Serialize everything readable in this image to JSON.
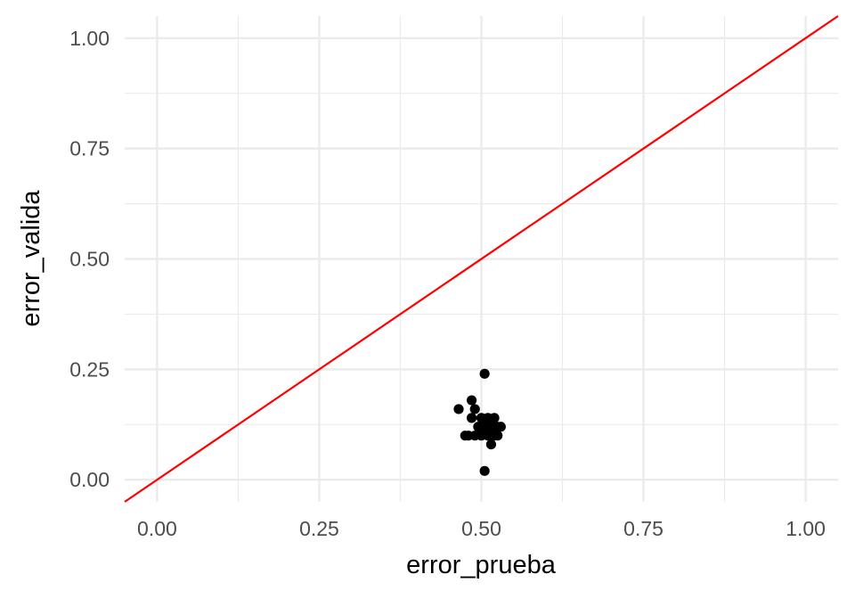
{
  "chart_data": {
    "type": "scatter",
    "title": "",
    "xlabel": "error_prueba",
    "ylabel": "error_valida",
    "xlim": [
      -0.05,
      1.05
    ],
    "ylim": [
      -0.05,
      1.05
    ],
    "x_ticks": [
      0.0,
      0.25,
      0.5,
      0.75,
      1.0
    ],
    "y_ticks": [
      0.0,
      0.25,
      0.5,
      0.75,
      1.0
    ],
    "x_tick_labels": [
      "0.00",
      "0.25",
      "0.50",
      "0.75",
      "1.00"
    ],
    "y_tick_labels": [
      "0.00",
      "0.25",
      "0.50",
      "0.75",
      "1.00"
    ],
    "grid": true,
    "reference_line": {
      "intercept": 0,
      "slope": 1,
      "color": "#ff0000"
    },
    "point_color": "#000000",
    "points": [
      {
        "x": 0.505,
        "y": 0.24
      },
      {
        "x": 0.485,
        "y": 0.18
      },
      {
        "x": 0.465,
        "y": 0.16
      },
      {
        "x": 0.49,
        "y": 0.16
      },
      {
        "x": 0.485,
        "y": 0.14
      },
      {
        "x": 0.5,
        "y": 0.14
      },
      {
        "x": 0.51,
        "y": 0.14
      },
      {
        "x": 0.52,
        "y": 0.14
      },
      {
        "x": 0.495,
        "y": 0.12
      },
      {
        "x": 0.505,
        "y": 0.12
      },
      {
        "x": 0.515,
        "y": 0.12
      },
      {
        "x": 0.525,
        "y": 0.12
      },
      {
        "x": 0.53,
        "y": 0.12
      },
      {
        "x": 0.5,
        "y": 0.11
      },
      {
        "x": 0.51,
        "y": 0.11
      },
      {
        "x": 0.52,
        "y": 0.11
      },
      {
        "x": 0.475,
        "y": 0.1
      },
      {
        "x": 0.48,
        "y": 0.1
      },
      {
        "x": 0.49,
        "y": 0.1
      },
      {
        "x": 0.5,
        "y": 0.1
      },
      {
        "x": 0.51,
        "y": 0.1
      },
      {
        "x": 0.52,
        "y": 0.1
      },
      {
        "x": 0.525,
        "y": 0.1
      },
      {
        "x": 0.515,
        "y": 0.08
      },
      {
        "x": 0.505,
        "y": 0.02
      }
    ]
  }
}
